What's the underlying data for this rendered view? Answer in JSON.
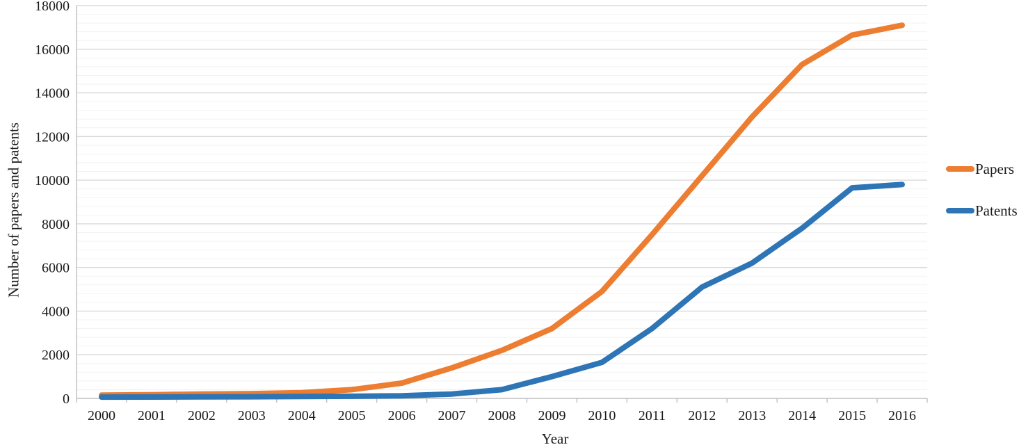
{
  "chart_data": {
    "type": "line",
    "title": "",
    "xlabel": "Year",
    "ylabel": "Number of papers and patents",
    "x": [
      2000,
      2001,
      2002,
      2003,
      2004,
      2005,
      2006,
      2007,
      2008,
      2009,
      2010,
      2011,
      2012,
      2013,
      2014,
      2015,
      2016
    ],
    "series": [
      {
        "name": "Papers",
        "color": "#ED7D31",
        "values": [
          150,
          170,
          200,
          220,
          260,
          400,
          700,
          1400,
          2200,
          3200,
          4900,
          7500,
          10200,
          12900,
          15300,
          16650,
          17100
        ]
      },
      {
        "name": "Patents",
        "color": "#2E75B6",
        "values": [
          60,
          65,
          70,
          75,
          85,
          100,
          120,
          200,
          400,
          1000,
          1650,
          3200,
          5100,
          6200,
          7800,
          9650,
          9800
        ]
      }
    ],
    "ylim": [
      0,
      18000
    ],
    "y_major_step": 2000,
    "y_minor_step": 400,
    "grid": "horizontal-major-and-minor",
    "legend_position": "right",
    "colors": {
      "major_gridline": "#d9d9d9",
      "minor_gridline": "#f2f2f2",
      "axis_line": "#bfbfbf",
      "text": "#1a1a1a"
    }
  }
}
